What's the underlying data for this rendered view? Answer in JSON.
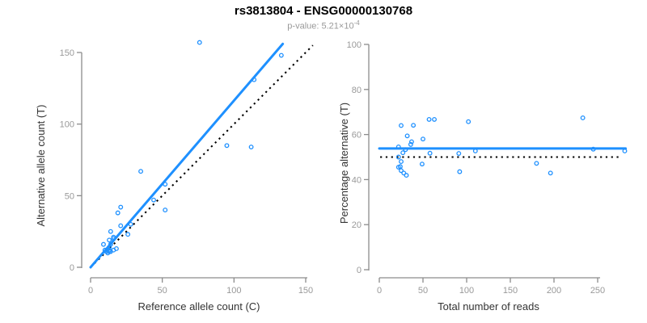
{
  "header": {
    "title": "rs3813804 - ENSG00000130768",
    "p_value_prefix": "p-value: 5.21×10",
    "p_value_exponent": "-4"
  },
  "colors": {
    "accent_blue": "#1E90FF",
    "reference_black": "#000000",
    "axis_gray": "#8c8c8c",
    "tick_label_gray": "#999999",
    "axis_title_dark": "#333333",
    "subtitle_gray": "#999999"
  },
  "chart_data": [
    {
      "type": "scatter",
      "panel": "left",
      "xlabel": "Reference allele count (C)",
      "ylabel": "Alternative allele count (T)",
      "xticks": [
        0,
        50,
        100,
        150
      ],
      "yticks": [
        0,
        50,
        100,
        150
      ],
      "xlim": [
        0,
        155
      ],
      "ylim": [
        0,
        158
      ],
      "grid": false,
      "points": [
        [
          9,
          16
        ],
        [
          14,
          25
        ],
        [
          19,
          38
        ],
        [
          21,
          42
        ],
        [
          35,
          67
        ],
        [
          76,
          157
        ],
        [
          13,
          19
        ],
        [
          16,
          21
        ],
        [
          21,
          29
        ],
        [
          10,
          12
        ],
        [
          14,
          16
        ],
        [
          16,
          20
        ],
        [
          28,
          30
        ],
        [
          44,
          47
        ],
        [
          52,
          58
        ],
        [
          114,
          131
        ],
        [
          133,
          148
        ],
        [
          11,
          11
        ],
        [
          13,
          14
        ],
        [
          13,
          12
        ],
        [
          26,
          23
        ],
        [
          95,
          85
        ],
        [
          13,
          11
        ],
        [
          14,
          11
        ],
        [
          12,
          10
        ],
        [
          52,
          40
        ],
        [
          112,
          84
        ],
        [
          16,
          12
        ],
        [
          18,
          13
        ]
      ],
      "solid_line": {
        "x1": 0,
        "y1": 0,
        "x2": 134,
        "y2": 156
      },
      "dotted_line": {
        "x1": 0,
        "y1": 0,
        "x2": 155,
        "y2": 155
      }
    },
    {
      "type": "scatter",
      "panel": "right",
      "xlabel": "Total number of reads",
      "ylabel": "Percentage alternative (T)",
      "xticks": [
        0,
        50,
        100,
        150,
        200,
        250
      ],
      "yticks": [
        0,
        20,
        40,
        60,
        80,
        100
      ],
      "xlim": [
        0,
        283
      ],
      "ylim": [
        0,
        100
      ],
      "grid": false,
      "points": [
        [
          25,
          64.0
        ],
        [
          39,
          64.1
        ],
        [
          57,
          66.7
        ],
        [
          63,
          66.7
        ],
        [
          102,
          65.7
        ],
        [
          233,
          67.4
        ],
        [
          32,
          59.4
        ],
        [
          37,
          56.8
        ],
        [
          50,
          58.0
        ],
        [
          22,
          54.5
        ],
        [
          30,
          53.3
        ],
        [
          36,
          55.6
        ],
        [
          58,
          51.7
        ],
        [
          91,
          51.6
        ],
        [
          110,
          52.7
        ],
        [
          245,
          53.5
        ],
        [
          281,
          52.7
        ],
        [
          22,
          50.0
        ],
        [
          27,
          51.9
        ],
        [
          25,
          48.0
        ],
        [
          49,
          46.9
        ],
        [
          180,
          47.2
        ],
        [
          24,
          45.8
        ],
        [
          25,
          44.0
        ],
        [
          22,
          45.5
        ],
        [
          92,
          43.5
        ],
        [
          196,
          42.9
        ],
        [
          28,
          42.9
        ],
        [
          31,
          41.9
        ]
      ],
      "solid_line": {
        "x1": 0,
        "y1": 53.8,
        "x2": 282,
        "y2": 53.8
      },
      "dotted_line": {
        "x1": 1,
        "y1": 50,
        "x2": 277,
        "y2": 50
      }
    }
  ]
}
